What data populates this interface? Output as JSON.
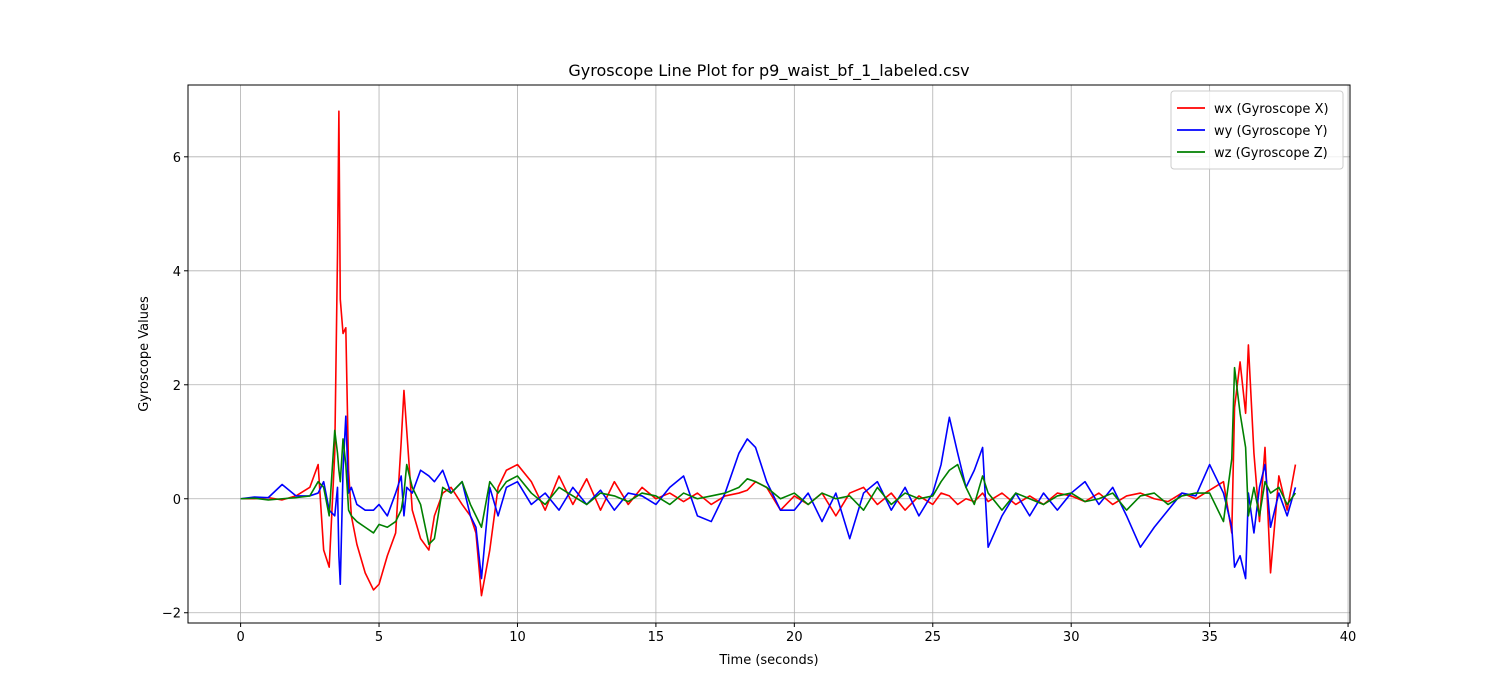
{
  "chart_data": {
    "type": "line",
    "title": "Gyroscope Line Plot for p9_waist_bf_1_labeled.csv",
    "x_label": "Time (seconds)",
    "y_label": "Gyroscope Values",
    "x": [
      0,
      0.5,
      1,
      1.5,
      2,
      2.5,
      2.8,
      3.0,
      3.2,
      3.4,
      3.5,
      3.55,
      3.6,
      3.7,
      3.8,
      3.9,
      4.0,
      4.2,
      4.5,
      4.8,
      5.0,
      5.3,
      5.6,
      5.8,
      5.9,
      6.0,
      6.2,
      6.5,
      6.8,
      7.0,
      7.3,
      7.6,
      8.0,
      8.3,
      8.5,
      8.7,
      9.0,
      9.3,
      9.6,
      10,
      10.5,
      11,
      11.5,
      12,
      12.5,
      13,
      13.5,
      14,
      14.5,
      15,
      15.5,
      16,
      16.5,
      17,
      17.5,
      18,
      18.3,
      18.6,
      19,
      19.5,
      20,
      20.5,
      21,
      21.5,
      22,
      22.5,
      23,
      23.5,
      24,
      24.5,
      25,
      25.3,
      25.6,
      25.9,
      26.2,
      26.5,
      26.8,
      27,
      27.5,
      28,
      28.5,
      29,
      29.5,
      30,
      30.5,
      31,
      31.5,
      32,
      32.5,
      33,
      33.5,
      34,
      34.5,
      35,
      35.5,
      35.8,
      35.9,
      36.1,
      36.3,
      36.4,
      36.6,
      36.8,
      37,
      37.2,
      37.5,
      37.8,
      38.1
    ],
    "series": [
      {
        "name": "wx (Gyroscope X)",
        "color": "#ff0000",
        "values": [
          0,
          0,
          0.02,
          -0.02,
          0.05,
          0.2,
          0.6,
          -0.9,
          -1.2,
          0.8,
          4.3,
          6.8,
          3.5,
          2.9,
          3.0,
          0.5,
          -0.3,
          -0.8,
          -1.3,
          -1.6,
          -1.5,
          -1.0,
          -0.6,
          1.0,
          1.9,
          1.2,
          -0.2,
          -0.7,
          -0.9,
          -0.3,
          0.1,
          0.2,
          -0.1,
          -0.3,
          -0.6,
          -1.7,
          -0.9,
          0.2,
          0.5,
          0.6,
          0.3,
          -0.2,
          0.4,
          -0.1,
          0.35,
          -0.2,
          0.3,
          -0.1,
          0.2,
          0,
          0.1,
          -0.05,
          0.1,
          -0.1,
          0.05,
          0.1,
          0.15,
          0.3,
          0.2,
          -0.2,
          0.05,
          -0.1,
          0.1,
          -0.3,
          0.1,
          0.2,
          -0.1,
          0.1,
          -0.2,
          0.05,
          -0.1,
          0.1,
          0.05,
          -0.1,
          0,
          -0.05,
          0.1,
          -0.05,
          0.1,
          -0.1,
          0.05,
          -0.1,
          0.1,
          0.05,
          -0.05,
          0.1,
          -0.1,
          0.05,
          0.1,
          0,
          -0.05,
          0.1,
          0,
          0.15,
          0.3,
          -0.6,
          1.6,
          2.4,
          1.5,
          2.7,
          0.8,
          -0.4,
          0.9,
          -1.3,
          0.4,
          -0.2,
          0.6
        ]
      },
      {
        "name": "wy (Gyroscope Y)",
        "color": "#0000ff",
        "values": [
          0,
          0.03,
          0.02,
          0.25,
          0.05,
          0.05,
          0.1,
          0.3,
          -0.2,
          -0.3,
          0.2,
          -1.0,
          -1.5,
          0.5,
          1.45,
          0.1,
          0.2,
          -0.1,
          -0.2,
          -0.2,
          -0.1,
          -0.3,
          0.1,
          0.4,
          -0.3,
          0.2,
          0.1,
          0.5,
          0.4,
          0.3,
          0.5,
          0.1,
          0.3,
          -0.3,
          -0.5,
          -1.4,
          0.2,
          -0.3,
          0.2,
          0.3,
          -0.1,
          0.1,
          -0.2,
          0.2,
          -0.1,
          0.15,
          -0.2,
          0.1,
          0.05,
          -0.1,
          0.2,
          0.4,
          -0.3,
          -0.4,
          0.1,
          0.8,
          1.05,
          0.9,
          0.3,
          -0.2,
          -0.2,
          0.1,
          -0.4,
          0.1,
          -0.7,
          0.1,
          0.3,
          -0.2,
          0.2,
          -0.3,
          0.1,
          0.6,
          1.43,
          0.8,
          0.2,
          0.5,
          0.9,
          -0.85,
          -0.3,
          0.1,
          -0.3,
          0.1,
          -0.2,
          0.1,
          0.3,
          -0.1,
          0.2,
          -0.3,
          -0.85,
          -0.5,
          -0.2,
          0.1,
          0.05,
          0.6,
          0.1,
          -0.5,
          -1.2,
          -1.0,
          -1.4,
          0.1,
          -0.6,
          0.2,
          0.6,
          -0.5,
          0.1,
          -0.3,
          0.2
        ]
      },
      {
        "name": "wz (Gyroscope Z)",
        "color": "#008000",
        "values": [
          0,
          0.01,
          -0.02,
          0.0,
          0.02,
          0.05,
          0.3,
          0.2,
          -0.3,
          1.2,
          0.8,
          0.5,
          0.3,
          1.05,
          0.6,
          -0.2,
          -0.3,
          -0.4,
          -0.5,
          -0.6,
          -0.45,
          -0.5,
          -0.4,
          -0.2,
          0.1,
          0.6,
          0.2,
          -0.1,
          -0.8,
          -0.7,
          0.2,
          0.1,
          0.3,
          -0.1,
          -0.3,
          -0.5,
          0.3,
          0.1,
          0.3,
          0.4,
          0.1,
          -0.1,
          0.2,
          0.05,
          -0.1,
          0.1,
          0.05,
          -0.05,
          0.1,
          0.05,
          -0.1,
          0.1,
          0,
          0.05,
          0.1,
          0.2,
          0.35,
          0.3,
          0.2,
          0,
          0.1,
          -0.1,
          0.1,
          0,
          0.05,
          -0.2,
          0.2,
          -0.1,
          0.1,
          0,
          0.05,
          0.3,
          0.5,
          0.6,
          0.2,
          -0.1,
          0.4,
          0.1,
          -0.2,
          0.1,
          0,
          -0.1,
          0.05,
          0.1,
          -0.05,
          0,
          0.1,
          -0.2,
          0.05,
          0.1,
          -0.1,
          0.05,
          0.1,
          0.1,
          -0.4,
          0.7,
          2.3,
          1.5,
          0.9,
          -0.3,
          0.2,
          -0.3,
          0.3,
          0.1,
          0.2,
          -0.1,
          0.1
        ]
      }
    ],
    "xlim": [
      -1.9,
      40.07
    ],
    "ylim": [
      -2.18,
      7.26
    ],
    "xticks": [
      0,
      5,
      10,
      15,
      20,
      25,
      30,
      35,
      40
    ],
    "yticks": [
      {
        "value": -2,
        "label": "−2"
      },
      0,
      2,
      4,
      6
    ],
    "grid": true,
    "legend": "upper right"
  }
}
